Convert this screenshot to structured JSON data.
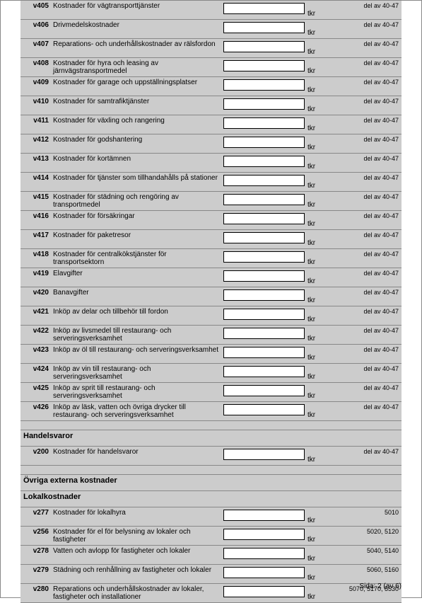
{
  "unit": "tkr",
  "footer": "Sida: 2 (av 6)",
  "sections": [
    {
      "rows": [
        {
          "code": "v405",
          "desc": "Kostnader för vägtransporttjänster",
          "note": "del av 40-47"
        },
        {
          "code": "v406",
          "desc": "Drivmedelskostnader",
          "note": "del av 40-47"
        },
        {
          "code": "v407",
          "desc": "Reparations- och underhållskostnader av rälsfordon",
          "note": "del av 40-47"
        },
        {
          "code": "v408",
          "desc": "Kostnader för hyra och leasing av järnvägstransportmedel",
          "note": "del av 40-47"
        },
        {
          "code": "v409",
          "desc": "Kostnader för garage och uppställningsplatser",
          "note": "del av 40-47"
        },
        {
          "code": "v410",
          "desc": "Kostnader för samtrafiktjänster",
          "note": "del av 40-47"
        },
        {
          "code": "v411",
          "desc": "Kostnader för växling och rangering",
          "note": "del av 40-47"
        },
        {
          "code": "v412",
          "desc": "Kostnader för godshantering",
          "note": "del av 40-47"
        },
        {
          "code": "v413",
          "desc": "Kostnader för kortämnen",
          "note": "del av 40-47"
        },
        {
          "code": "v414",
          "desc": "Kostnader för tjänster som tillhandahålls på stationer",
          "note": "del av 40-47"
        },
        {
          "code": "v415",
          "desc": "Kostnader för städning och rengöring av transportmedel",
          "note": "del av 40-47"
        },
        {
          "code": "v416",
          "desc": "Kostnader för försäkringar",
          "note": "del av 40-47"
        },
        {
          "code": "v417",
          "desc": "Kostnader för paketresor",
          "note": "del av 40-47"
        },
        {
          "code": "v418",
          "desc": "Kostnader för centralkökstjänster för transportsektorn",
          "note": "del av 40-47"
        },
        {
          "code": "v419",
          "desc": "Elavgifter",
          "note": "del av 40-47"
        },
        {
          "code": "v420",
          "desc": "Banavgifter",
          "note": "del av 40-47"
        },
        {
          "code": "v421",
          "desc": "Inköp av delar och tillbehör till fordon",
          "note": "del av 40-47"
        },
        {
          "code": "v422",
          "desc": "Inköp av livsmedel till restaurang- och serveringsverksamhet",
          "note": "del av 40-47"
        },
        {
          "code": "v423",
          "desc": "Inköp av öl till restaurang- och serveringsverksamhet",
          "note": "del av 40-47"
        },
        {
          "code": "v424",
          "desc": "Inköp av vin till restaurang- och serveringsverksamhet",
          "note": "del av 40-47"
        },
        {
          "code": "v425",
          "desc": "Inköp av sprit till restaurang- och serveringsverksamhet",
          "note": "del av 40-47"
        },
        {
          "code": "v426",
          "desc": "Inköp av  läsk, vatten och övriga drycker till restaurang- och serveringsverksamhet",
          "note": "del av 40-47"
        }
      ]
    },
    {
      "title": "Handelsvaror",
      "rows": [
        {
          "code": "v200",
          "desc": "Kostnader för handelsvaror",
          "note": "del av 40-47"
        }
      ]
    },
    {
      "title": "Övriga externa kostnader",
      "subtitle": "Lokalkostnader",
      "rows": [
        {
          "code": "v277",
          "desc": "Kostnader för lokalhyra",
          "note": "5010"
        },
        {
          "code": "v256",
          "desc": "Kostnader för el för belysning av lokaler och fastigheter",
          "note": "5020, 5120"
        },
        {
          "code": "v278",
          "desc": "Vatten och avlopp för fastigheter och lokaler",
          "note": "5040, 5140"
        },
        {
          "code": "v279",
          "desc": "Städning och renhållning av fastigheter och lokaler",
          "note": "5060, 5160"
        },
        {
          "code": "v280",
          "desc": "Reparations och underhållskostnader av lokaler, fastigheter och installationer",
          "note": "5070, 5170, 5530"
        }
      ]
    }
  ]
}
